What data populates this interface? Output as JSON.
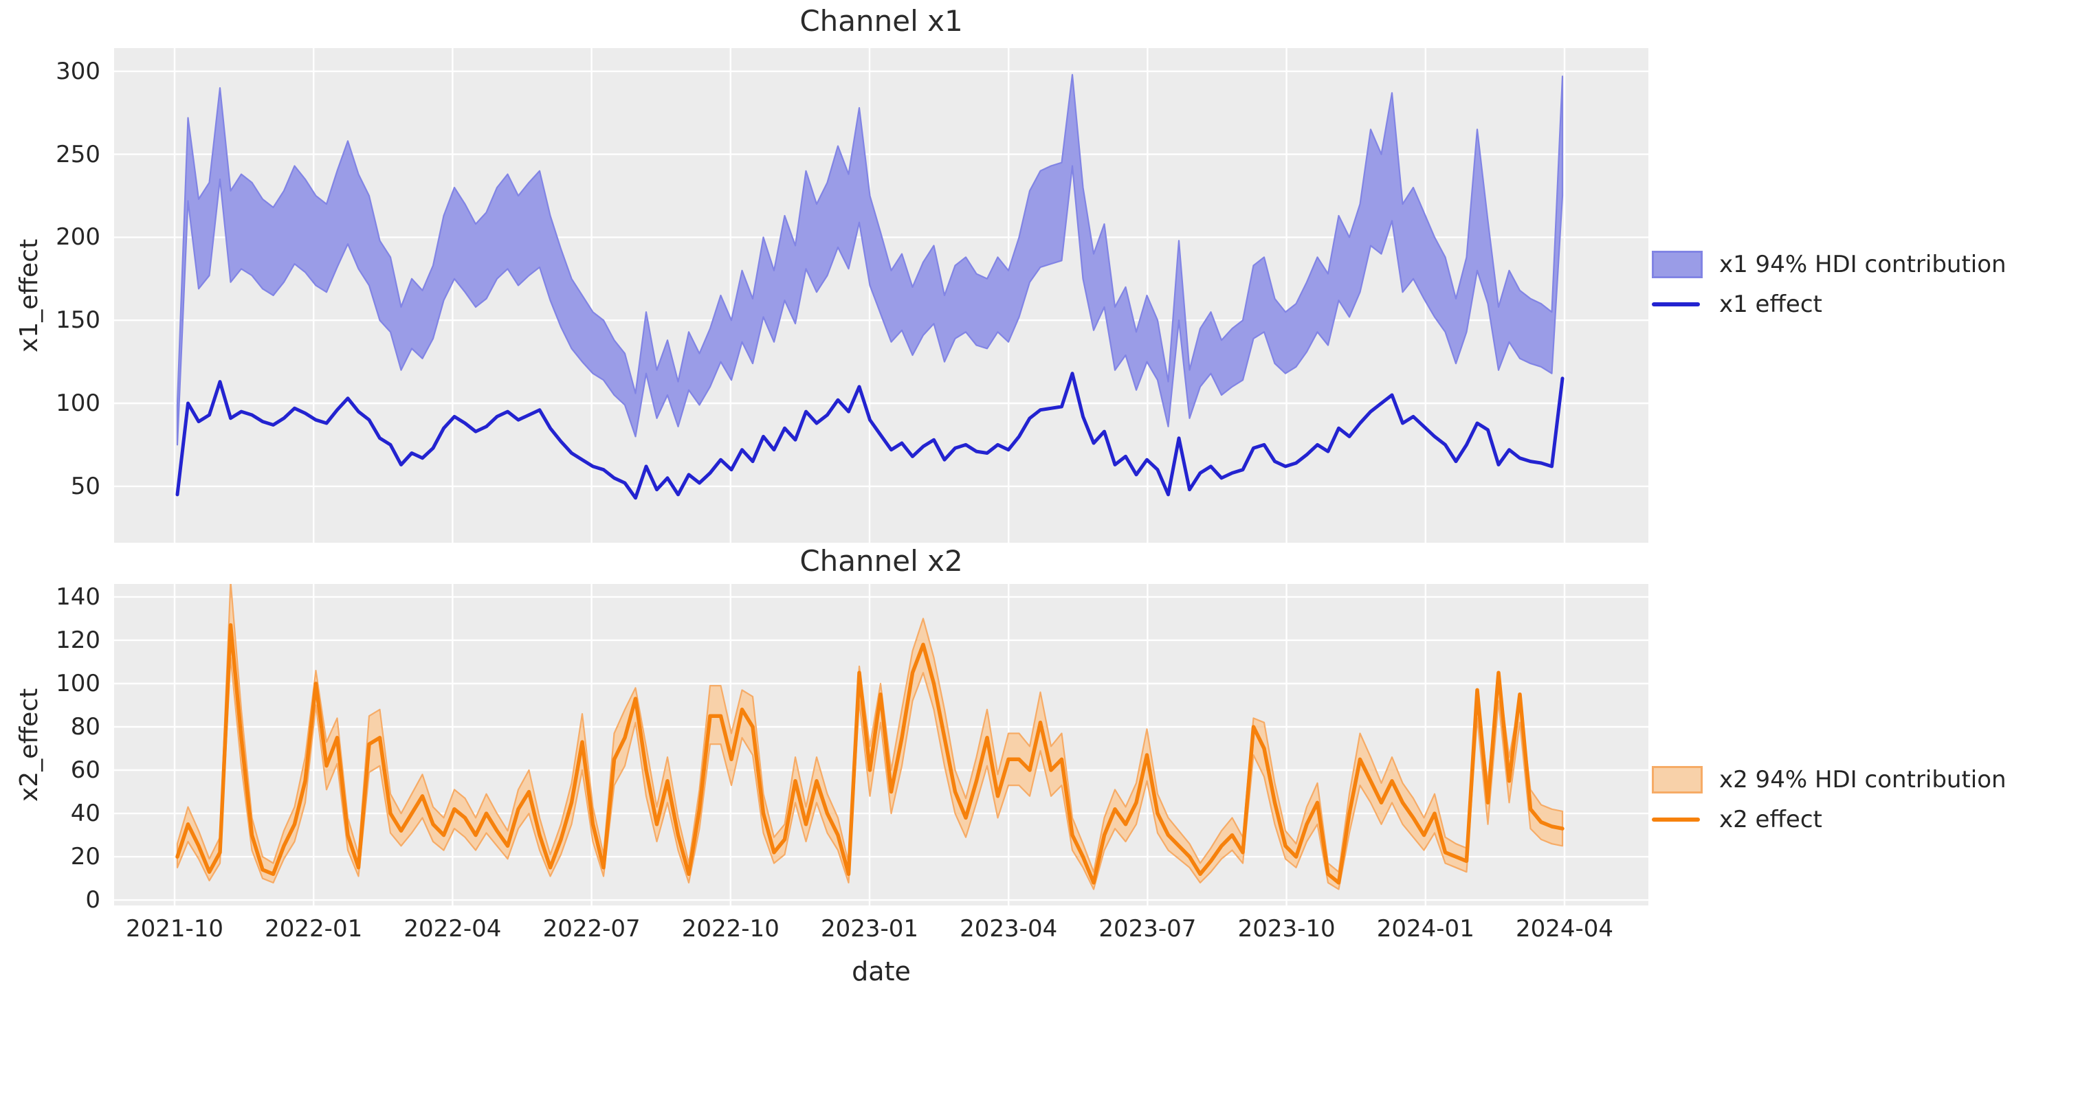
{
  "style": {
    "figure_bg": "#ffffff",
    "plot_bg": "#ececec",
    "grid_color": "#ffffff",
    "text_color": "#262626"
  },
  "chart_data": [
    {
      "id": "x1",
      "type": "line",
      "title": "Channel x1",
      "xlabel": "",
      "ylabel": "x1_effect",
      "grid": true,
      "legend_position": "center right, outside axes",
      "x_tick_labels": [
        "2021-10",
        "2022-01",
        "2022-04",
        "2022-07",
        "2022-10",
        "2023-01",
        "2023-04",
        "2023-07",
        "2023-10",
        "2024-01",
        "2024-04"
      ],
      "x_start": "2021-10-03",
      "x_step_days": 7,
      "y_ticks": [
        300,
        250,
        200,
        150,
        100,
        50
      ],
      "y_tick_labels": [
        "300",
        "250",
        "200",
        "150",
        "100",
        "50"
      ],
      "ylim": [
        16,
        314
      ],
      "legend": [
        {
          "label": "x1 94% HDI contribution",
          "type": "patch"
        },
        {
          "label": "x1 effect",
          "type": "line"
        }
      ],
      "colors": {
        "line": "#2323d0",
        "band_fill": "#9a9ce7",
        "band_edge": "#8184e4"
      },
      "series": [
        {
          "name": "x1 effect",
          "values": [
            45,
            100,
            89,
            93,
            113,
            91,
            95,
            93,
            89,
            87,
            91,
            97,
            94,
            90,
            88,
            96,
            103,
            95,
            90,
            79,
            75,
            63,
            70,
            67,
            73,
            85,
            92,
            88,
            83,
            86,
            92,
            95,
            90,
            93,
            96,
            85,
            77,
            70,
            66,
            62,
            60,
            55,
            52,
            43,
            62,
            48,
            55,
            45,
            57,
            52,
            58,
            66,
            60,
            72,
            65,
            80,
            72,
            85,
            78,
            95,
            88,
            93,
            102,
            95,
            110,
            90,
            81,
            72,
            76,
            68,
            74,
            78,
            66,
            73,
            75,
            71,
            70,
            75,
            72,
            80,
            91,
            96,
            97,
            98,
            118,
            92,
            76,
            83,
            63,
            68,
            57,
            66,
            60,
            45,
            79,
            48,
            58,
            62,
            55,
            58,
            60,
            73,
            75,
            65,
            62,
            64,
            69,
            75,
            71,
            85,
            80,
            88,
            95,
            100,
            105,
            88,
            92,
            86,
            80,
            75,
            65,
            75,
            88,
            84,
            63,
            72,
            67,
            65,
            64,
            62,
            115
          ]
        },
        {
          "name": "x1 94% HDI lower",
          "values": [
            75,
            222,
            169,
            177,
            235,
            173,
            181,
            177,
            169,
            165,
            173,
            184,
            179,
            171,
            167,
            182,
            196,
            181,
            171,
            150,
            143,
            120,
            133,
            127,
            139,
            162,
            175,
            167,
            158,
            163,
            175,
            181,
            171,
            177,
            182,
            162,
            146,
            133,
            125,
            118,
            114,
            105,
            99,
            80,
            118,
            91,
            105,
            86,
            108,
            99,
            110,
            125,
            114,
            137,
            124,
            152,
            137,
            162,
            148,
            181,
            167,
            177,
            194,
            181,
            209,
            171,
            154,
            137,
            144,
            129,
            141,
            148,
            125,
            139,
            143,
            135,
            133,
            143,
            137,
            152,
            173,
            182,
            184,
            186,
            243,
            175,
            144,
            158,
            120,
            129,
            108,
            125,
            114,
            86,
            150,
            91,
            110,
            118,
            105,
            110,
            114,
            139,
            143,
            124,
            118,
            122,
            131,
            143,
            135,
            162,
            152,
            167,
            195,
            190,
            210,
            167,
            175,
            163,
            152,
            143,
            124,
            143,
            180,
            160,
            120,
            137,
            127,
            124,
            122,
            118,
            225
          ]
        },
        {
          "name": "x1 94% HDI upper",
          "values": [
            100,
            272,
            223,
            233,
            290,
            228,
            238,
            233,
            223,
            218,
            228,
            243,
            235,
            225,
            220,
            240,
            258,
            238,
            225,
            198,
            188,
            158,
            175,
            168,
            183,
            213,
            230,
            220,
            208,
            215,
            230,
            238,
            225,
            233,
            240,
            213,
            193,
            175,
            165,
            155,
            150,
            138,
            130,
            106,
            155,
            120,
            138,
            113,
            143,
            130,
            145,
            165,
            150,
            180,
            163,
            200,
            180,
            213,
            195,
            240,
            220,
            233,
            255,
            238,
            278,
            225,
            203,
            180,
            190,
            170,
            185,
            195,
            165,
            183,
            188,
            178,
            175,
            188,
            180,
            200,
            228,
            240,
            243,
            245,
            298,
            230,
            190,
            208,
            158,
            170,
            143,
            165,
            150,
            113,
            198,
            120,
            145,
            155,
            138,
            145,
            150,
            183,
            188,
            163,
            155,
            160,
            173,
            188,
            178,
            213,
            200,
            220,
            265,
            250,
            287,
            220,
            230,
            215,
            200,
            188,
            163,
            188,
            265,
            210,
            158,
            180,
            168,
            163,
            160,
            155,
            297
          ]
        }
      ]
    },
    {
      "id": "x2",
      "type": "line",
      "title": "Channel x2",
      "xlabel": "date",
      "ylabel": "x2_effect",
      "grid": true,
      "legend_position": "center right, outside axes",
      "x_tick_labels": [
        "2021-10",
        "2022-01",
        "2022-04",
        "2022-07",
        "2022-10",
        "2023-01",
        "2023-04",
        "2023-07",
        "2023-10",
        "2024-01",
        "2024-04"
      ],
      "x_start": "2021-10-03",
      "x_step_days": 7,
      "y_ticks": [
        140,
        120,
        100,
        80,
        60,
        40,
        20,
        0
      ],
      "y_tick_labels": [
        "140",
        "120",
        "100",
        "80",
        "60",
        "40",
        "20",
        "0"
      ],
      "ylim": [
        -2.5,
        146
      ],
      "legend": [
        {
          "label": "x2 94% HDI contribution",
          "type": "patch"
        },
        {
          "label": "x2 effect",
          "type": "line"
        }
      ],
      "colors": {
        "line": "#f6810c",
        "band_fill": "#f8d1a9",
        "band_edge": "#f6ab66"
      },
      "series": [
        {
          "name": "x2 effect",
          "values": [
            20,
            35,
            25,
            13,
            22,
            127,
            75,
            30,
            14,
            12,
            25,
            35,
            55,
            100,
            62,
            75,
            30,
            15,
            72,
            75,
            40,
            32,
            40,
            48,
            35,
            30,
            42,
            38,
            30,
            40,
            32,
            25,
            42,
            50,
            30,
            15,
            28,
            45,
            73,
            35,
            15,
            65,
            75,
            93,
            60,
            35,
            55,
            30,
            12,
            42,
            85,
            85,
            65,
            88,
            80,
            40,
            22,
            28,
            55,
            35,
            55,
            40,
            30,
            12,
            105,
            60,
            95,
            50,
            75,
            105,
            118,
            100,
            75,
            50,
            38,
            55,
            75,
            48,
            65,
            65,
            60,
            82,
            60,
            65,
            30,
            20,
            8,
            30,
            42,
            35,
            45,
            67,
            40,
            30,
            25,
            20,
            12,
            18,
            25,
            30,
            22,
            80,
            70,
            45,
            25,
            20,
            35,
            45,
            12,
            8,
            40,
            65,
            55,
            45,
            55,
            45,
            38,
            30,
            40,
            22,
            20,
            18,
            97,
            45,
            105,
            55,
            95,
            42,
            36,
            34,
            33
          ]
        },
        {
          "name": "x2 94% HDI lower",
          "values": [
            15,
            27,
            19,
            9,
            17,
            112,
            62,
            23,
            10,
            8,
            19,
            27,
            45,
            90,
            51,
            63,
            23,
            11,
            59,
            62,
            31,
            25,
            31,
            38,
            27,
            23,
            33,
            29,
            23,
            31,
            25,
            19,
            33,
            40,
            23,
            11,
            21,
            35,
            60,
            27,
            11,
            53,
            62,
            82,
            48,
            27,
            45,
            23,
            8,
            33,
            72,
            72,
            53,
            75,
            67,
            31,
            17,
            21,
            45,
            27,
            45,
            31,
            23,
            8,
            92,
            48,
            82,
            40,
            62,
            92,
            105,
            88,
            62,
            40,
            29,
            45,
            62,
            38,
            53,
            53,
            48,
            69,
            48,
            53,
            23,
            15,
            5,
            23,
            33,
            27,
            35,
            55,
            31,
            23,
            19,
            15,
            8,
            13,
            19,
            23,
            17,
            67,
            57,
            35,
            19,
            15,
            27,
            35,
            8,
            5,
            31,
            53,
            45,
            35,
            45,
            35,
            29,
            23,
            31,
            17,
            15,
            13,
            84,
            35,
            92,
            45,
            82,
            33,
            28,
            26,
            25
          ]
        },
        {
          "name": "x2 94% HDI upper",
          "values": [
            26,
            43,
            32,
            19,
            29,
            147,
            88,
            38,
            20,
            17,
            32,
            43,
            66,
            106,
            73,
            84,
            38,
            21,
            85,
            88,
            49,
            40,
            49,
            58,
            43,
            38,
            51,
            47,
            38,
            49,
            40,
            32,
            51,
            60,
            38,
            21,
            35,
            54,
            86,
            43,
            21,
            77,
            88,
            98,
            71,
            43,
            66,
            38,
            17,
            51,
            99,
            99,
            77,
            97,
            94,
            49,
            29,
            35,
            66,
            43,
            66,
            49,
            38,
            17,
            108,
            71,
            100,
            60,
            88,
            115,
            130,
            112,
            88,
            60,
            47,
            66,
            88,
            58,
            77,
            77,
            71,
            96,
            71,
            77,
            38,
            26,
            13,
            38,
            51,
            43,
            54,
            79,
            49,
            38,
            32,
            26,
            17,
            24,
            32,
            38,
            29,
            84,
            82,
            54,
            32,
            26,
            43,
            54,
            17,
            13,
            49,
            77,
            66,
            54,
            66,
            54,
            47,
            38,
            49,
            29,
            26,
            24,
            95,
            54,
            104,
            66,
            93,
            51,
            44,
            42,
            41
          ]
        }
      ]
    }
  ]
}
